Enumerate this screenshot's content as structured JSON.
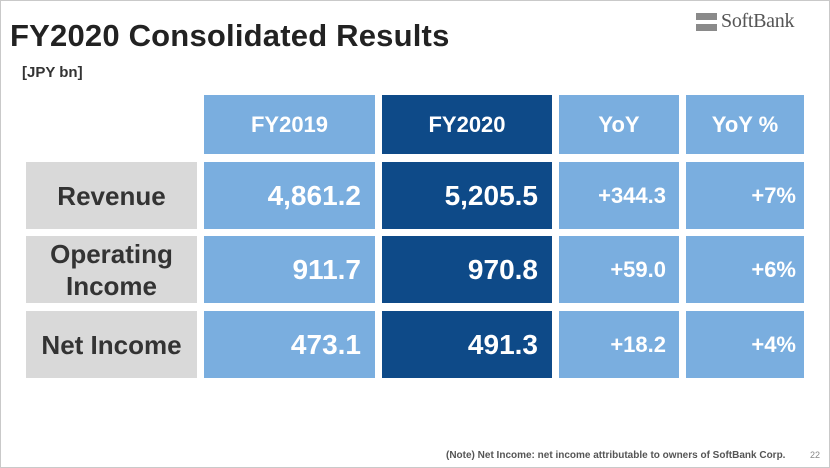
{
  "slide": {
    "title": "FY2020 Consolidated Results",
    "unit": "[JPY bn]",
    "logo_text": "SoftBank",
    "note": "(Note) Net Income: net income attributable to owners of SoftBank Corp.",
    "page_number": "22"
  },
  "table": {
    "headers": [
      "FY2019",
      "FY2020",
      "YoY",
      "YoY %"
    ],
    "rows": [
      {
        "label_lines": [
          "Revenue"
        ],
        "fy2019": "4,861.2",
        "fy2020": "5,205.5",
        "yoy": "+344.3",
        "yoy_pct": "+7%"
      },
      {
        "label_lines": [
          "Operating",
          "Income"
        ],
        "fy2019": "911.7",
        "fy2020": "970.8",
        "yoy": "+59.0",
        "yoy_pct": "+6%"
      },
      {
        "label_lines": [
          "Net Income"
        ],
        "fy2019": "473.1",
        "fy2020": "491.3",
        "yoy": "+18.2",
        "yoy_pct": "+4%"
      }
    ]
  },
  "colors": {
    "header_light": "#7aaedf",
    "header_dark": "#0e4a88",
    "label_bg": "#d9d9d9"
  }
}
